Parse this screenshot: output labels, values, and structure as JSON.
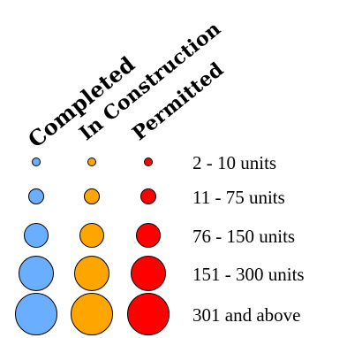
{
  "legend": {
    "columns": [
      {
        "label": "Completed",
        "color": "#6aaeff"
      },
      {
        "label": "In Construction",
        "color": "#ffa500"
      },
      {
        "label": "Permitted",
        "color": "#ff0000"
      }
    ],
    "rows": [
      {
        "label": "2 - 10 units"
      },
      {
        "label": "11 - 75 units"
      },
      {
        "label": "76 - 150 units"
      },
      {
        "label": "151 - 300 units"
      },
      {
        "label": "301 and above"
      }
    ]
  }
}
